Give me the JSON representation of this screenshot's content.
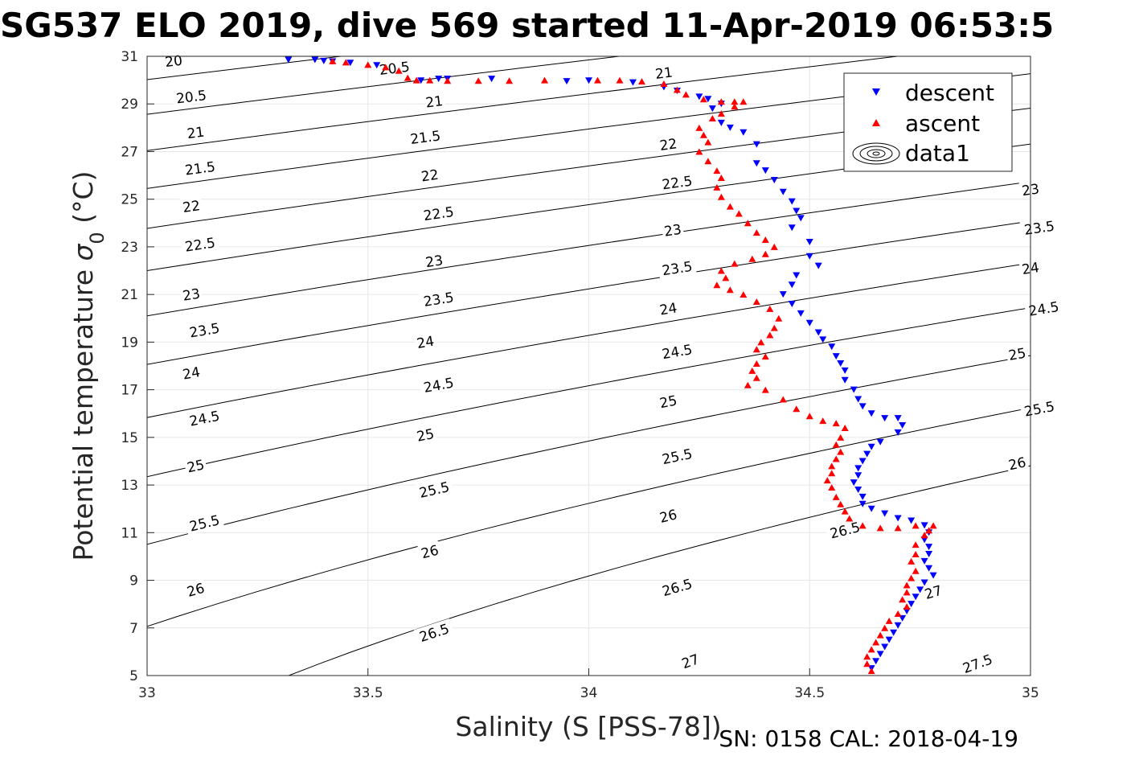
{
  "header": {
    "title": "SG537 ELO 2019, dive 569 started 11-Apr-2019 06:53:5"
  },
  "footer": {
    "sn_cal": "SN: 0158  CAL: 2018-04-19"
  },
  "chart_data": {
    "type": "scatter",
    "xlabel": "Salinity (S [PSS-78])",
    "ylabel": "Potential temperature",
    "ylabel_sigma": "σ",
    "ylabel_sub": "0",
    "ylabel_unit": "(°C)",
    "xlim": [
      33,
      35
    ],
    "ylim": [
      5,
      31
    ],
    "xticks": [
      33,
      33.5,
      34,
      34.5,
      35
    ],
    "yticks": [
      5,
      7,
      9,
      11,
      13,
      15,
      17,
      19,
      21,
      23,
      25,
      27,
      29,
      31
    ],
    "grid": true,
    "legend_position": "top-right",
    "colors": {
      "descent": "#0000ff",
      "ascent": "#ff0000",
      "contour": "#000000"
    },
    "legend": [
      "descent",
      "ascent",
      "data1"
    ],
    "contours": {
      "levels": [
        20,
        20.5,
        21,
        21.5,
        22,
        22.5,
        23,
        23.5,
        24,
        24.5,
        25,
        25.5,
        26,
        26.5,
        27,
        27.5
      ],
      "labels": [
        {
          "text": "20",
          "s": 33.06,
          "t": 30.8
        },
        {
          "text": "20.5",
          "s": 33.56,
          "t": 30.5
        },
        {
          "text": "20.5",
          "s": 33.1,
          "t": 29.3
        },
        {
          "text": "21",
          "s": 34.17,
          "t": 30.3
        },
        {
          "text": "21",
          "s": 33.65,
          "t": 29.1
        },
        {
          "text": "21",
          "s": 33.11,
          "t": 27.8
        },
        {
          "text": "21.5",
          "s": 33.63,
          "t": 27.6
        },
        {
          "text": "21.5",
          "s": 33.12,
          "t": 26.3
        },
        {
          "text": "22",
          "s": 34.18,
          "t": 27.3
        },
        {
          "text": "22",
          "s": 33.64,
          "t": 26.0
        },
        {
          "text": "22",
          "s": 33.1,
          "t": 24.7
        },
        {
          "text": "22.5",
          "s": 34.2,
          "t": 25.7
        },
        {
          "text": "22.5",
          "s": 33.66,
          "t": 24.4
        },
        {
          "text": "22.5",
          "s": 33.12,
          "t": 23.1
        },
        {
          "text": "23",
          "s": 35.0,
          "t": 25.4
        },
        {
          "text": "23",
          "s": 34.19,
          "t": 23.7
        },
        {
          "text": "23",
          "s": 33.65,
          "t": 22.4
        },
        {
          "text": "23",
          "s": 33.1,
          "t": 21.0
        },
        {
          "text": "23.5",
          "s": 35.02,
          "t": 23.8
        },
        {
          "text": "23.5",
          "s": 34.2,
          "t": 22.1
        },
        {
          "text": "23.5",
          "s": 33.66,
          "t": 20.8
        },
        {
          "text": "23.5",
          "s": 33.13,
          "t": 19.5
        },
        {
          "text": "24",
          "s": 35.0,
          "t": 22.1
        },
        {
          "text": "24",
          "s": 34.18,
          "t": 20.4
        },
        {
          "text": "24",
          "s": 33.63,
          "t": 19.0
        },
        {
          "text": "24",
          "s": 33.1,
          "t": 17.7
        },
        {
          "text": "24.5",
          "s": 35.03,
          "t": 20.4
        },
        {
          "text": "24.5",
          "s": 34.2,
          "t": 18.6
        },
        {
          "text": "24.5",
          "s": 33.66,
          "t": 17.2
        },
        {
          "text": "24.5",
          "s": 33.13,
          "t": 15.8
        },
        {
          "text": "25",
          "s": 34.97,
          "t": 18.5
        },
        {
          "text": "25",
          "s": 34.18,
          "t": 16.5
        },
        {
          "text": "25",
          "s": 33.63,
          "t": 15.1
        },
        {
          "text": "25",
          "s": 33.11,
          "t": 13.8
        },
        {
          "text": "25.5",
          "s": 35.02,
          "t": 16.2
        },
        {
          "text": "25.5",
          "s": 34.2,
          "t": 14.2
        },
        {
          "text": "25.5",
          "s": 33.65,
          "t": 12.8
        },
        {
          "text": "25.5",
          "s": 33.13,
          "t": 11.4
        },
        {
          "text": "26",
          "s": 34.97,
          "t": 13.9
        },
        {
          "text": "26",
          "s": 34.18,
          "t": 11.7
        },
        {
          "text": "26",
          "s": 33.64,
          "t": 10.2
        },
        {
          "text": "26",
          "s": 33.11,
          "t": 8.6
        },
        {
          "text": "26.5",
          "s": 34.58,
          "t": 11.1
        },
        {
          "text": "26.5",
          "s": 34.2,
          "t": 8.7
        },
        {
          "text": "26.5",
          "s": 33.65,
          "t": 6.8
        },
        {
          "text": "27",
          "s": 34.78,
          "t": 8.5
        },
        {
          "text": "27",
          "s": 34.23,
          "t": 5.6
        },
        {
          "text": "27.5",
          "s": 34.88,
          "t": 5.5
        }
      ]
    },
    "series": [
      {
        "name": "descent",
        "points": [
          [
            33.32,
            30.85
          ],
          [
            33.38,
            30.85
          ],
          [
            33.4,
            30.8
          ],
          [
            33.42,
            30.78
          ],
          [
            33.46,
            30.72
          ],
          [
            33.52,
            30.62
          ],
          [
            33.62,
            29.98
          ],
          [
            33.66,
            30.05
          ],
          [
            33.68,
            30.05
          ],
          [
            33.78,
            30.05
          ],
          [
            33.95,
            29.95
          ],
          [
            34.0,
            29.98
          ],
          [
            34.1,
            29.9
          ],
          [
            34.17,
            29.7
          ],
          [
            34.2,
            29.55
          ],
          [
            34.25,
            29.3
          ],
          [
            34.27,
            29.2
          ],
          [
            34.3,
            29.0
          ],
          [
            34.28,
            28.8
          ],
          [
            34.3,
            28.2
          ],
          [
            34.32,
            28.0
          ],
          [
            34.35,
            27.8
          ],
          [
            34.38,
            27.3
          ],
          [
            34.38,
            26.5
          ],
          [
            34.4,
            26.2
          ],
          [
            34.42,
            25.8
          ],
          [
            34.44,
            25.3
          ],
          [
            34.46,
            24.9
          ],
          [
            34.47,
            24.5
          ],
          [
            34.48,
            24.2
          ],
          [
            34.46,
            23.8
          ],
          [
            34.5,
            23.2
          ],
          [
            34.5,
            22.6
          ],
          [
            34.52,
            22.2
          ],
          [
            34.47,
            21.8
          ],
          [
            34.46,
            21.4
          ],
          [
            34.44,
            21.0
          ],
          [
            34.46,
            20.6
          ],
          [
            34.48,
            20.2
          ],
          [
            34.5,
            19.8
          ],
          [
            34.52,
            19.4
          ],
          [
            34.53,
            19.1
          ],
          [
            34.55,
            18.8
          ],
          [
            34.56,
            18.4
          ],
          [
            34.57,
            18.1
          ],
          [
            34.58,
            17.8
          ],
          [
            34.58,
            17.4
          ],
          [
            34.6,
            17.0
          ],
          [
            34.61,
            16.6
          ],
          [
            34.62,
            16.3
          ],
          [
            34.64,
            16.0
          ],
          [
            34.67,
            15.8
          ],
          [
            34.7,
            15.8
          ],
          [
            34.71,
            15.5
          ],
          [
            34.7,
            15.2
          ],
          [
            34.66,
            14.8
          ],
          [
            34.64,
            14.6
          ],
          [
            34.63,
            14.3
          ],
          [
            34.62,
            14.0
          ],
          [
            34.61,
            13.7
          ],
          [
            34.61,
            13.4
          ],
          [
            34.6,
            13.1
          ],
          [
            34.61,
            12.8
          ],
          [
            34.62,
            12.5
          ],
          [
            34.62,
            12.2
          ],
          [
            34.64,
            12.0
          ],
          [
            34.67,
            11.8
          ],
          [
            34.7,
            11.6
          ],
          [
            34.73,
            11.5
          ],
          [
            34.76,
            11.3
          ],
          [
            34.77,
            11.0
          ],
          [
            34.76,
            10.7
          ],
          [
            34.77,
            10.4
          ],
          [
            34.77,
            10.1
          ],
          [
            34.76,
            9.8
          ],
          [
            34.77,
            9.5
          ],
          [
            34.78,
            9.2
          ],
          [
            34.76,
            8.9
          ],
          [
            34.75,
            8.6
          ],
          [
            34.74,
            8.3
          ],
          [
            34.73,
            8.0
          ],
          [
            34.72,
            7.7
          ],
          [
            34.71,
            7.4
          ],
          [
            34.7,
            7.1
          ],
          [
            34.69,
            6.8
          ],
          [
            34.68,
            6.5
          ],
          [
            34.67,
            6.2
          ],
          [
            34.66,
            5.9
          ],
          [
            34.65,
            5.6
          ],
          [
            34.64,
            5.3
          ]
        ]
      },
      {
        "name": "ascent",
        "points": [
          [
            33.42,
            30.8
          ],
          [
            33.45,
            30.75
          ],
          [
            33.5,
            30.65
          ],
          [
            33.54,
            30.55
          ],
          [
            33.57,
            30.4
          ],
          [
            33.59,
            30.1
          ],
          [
            33.61,
            30.0
          ],
          [
            33.64,
            30.0
          ],
          [
            33.68,
            29.98
          ],
          [
            33.75,
            29.98
          ],
          [
            33.82,
            29.98
          ],
          [
            33.9,
            30.0
          ],
          [
            34.02,
            30.0
          ],
          [
            34.07,
            30.0
          ],
          [
            34.12,
            29.95
          ],
          [
            34.17,
            29.85
          ],
          [
            34.2,
            29.6
          ],
          [
            34.22,
            29.4
          ],
          [
            34.26,
            29.2
          ],
          [
            34.3,
            29.1
          ],
          [
            34.33,
            29.1
          ],
          [
            34.35,
            29.1
          ],
          [
            34.33,
            28.9
          ],
          [
            34.3,
            28.6
          ],
          [
            34.28,
            28.4
          ],
          [
            34.25,
            28.0
          ],
          [
            34.26,
            27.7
          ],
          [
            34.27,
            27.4
          ],
          [
            34.25,
            27.0
          ],
          [
            34.27,
            26.6
          ],
          [
            34.29,
            26.2
          ],
          [
            34.3,
            25.9
          ],
          [
            34.29,
            25.5
          ],
          [
            34.3,
            25.1
          ],
          [
            34.32,
            24.7
          ],
          [
            34.34,
            24.4
          ],
          [
            34.36,
            24.0
          ],
          [
            34.38,
            23.6
          ],
          [
            34.4,
            23.3
          ],
          [
            34.42,
            23.0
          ],
          [
            34.4,
            22.7
          ],
          [
            34.37,
            22.5
          ],
          [
            34.33,
            22.3
          ],
          [
            34.3,
            22.0
          ],
          [
            34.31,
            21.7
          ],
          [
            34.29,
            21.4
          ],
          [
            34.32,
            21.2
          ],
          [
            34.35,
            21.0
          ],
          [
            34.38,
            20.7
          ],
          [
            34.41,
            20.4
          ],
          [
            34.43,
            20.0
          ],
          [
            34.42,
            19.6
          ],
          [
            34.41,
            19.3
          ],
          [
            34.39,
            19.0
          ],
          [
            34.38,
            18.7
          ],
          [
            34.4,
            18.4
          ],
          [
            34.38,
            18.1
          ],
          [
            34.37,
            17.8
          ],
          [
            34.38,
            17.5
          ],
          [
            34.36,
            17.2
          ],
          [
            34.4,
            17.0
          ],
          [
            34.44,
            16.6
          ],
          [
            34.47,
            16.2
          ],
          [
            34.5,
            15.9
          ],
          [
            34.53,
            15.7
          ],
          [
            34.56,
            15.6
          ],
          [
            34.58,
            15.4
          ],
          [
            34.57,
            15.0
          ],
          [
            34.56,
            14.7
          ],
          [
            34.57,
            14.4
          ],
          [
            34.56,
            14.1
          ],
          [
            34.55,
            13.8
          ],
          [
            34.55,
            13.5
          ],
          [
            34.54,
            13.2
          ],
          [
            34.55,
            12.9
          ],
          [
            34.56,
            12.5
          ],
          [
            34.57,
            12.2
          ],
          [
            34.58,
            11.9
          ],
          [
            34.59,
            11.6
          ],
          [
            34.62,
            11.3
          ],
          [
            34.66,
            11.2
          ],
          [
            34.7,
            11.2
          ],
          [
            34.74,
            11.3
          ],
          [
            34.77,
            11.1
          ],
          [
            34.78,
            11.3
          ],
          [
            34.76,
            10.9
          ],
          [
            34.74,
            10.5
          ],
          [
            34.74,
            10.1
          ],
          [
            34.73,
            9.8
          ],
          [
            34.74,
            9.4
          ],
          [
            34.73,
            9.1
          ],
          [
            34.72,
            8.8
          ],
          [
            34.72,
            8.5
          ],
          [
            34.71,
            8.2
          ],
          [
            34.72,
            7.9
          ],
          [
            34.7,
            7.6
          ],
          [
            34.68,
            7.3
          ],
          [
            34.67,
            7.0
          ],
          [
            34.66,
            6.7
          ],
          [
            34.65,
            6.4
          ],
          [
            34.64,
            6.1
          ],
          [
            34.63,
            5.8
          ],
          [
            34.63,
            5.5
          ],
          [
            34.64,
            5.2
          ]
        ]
      }
    ]
  }
}
